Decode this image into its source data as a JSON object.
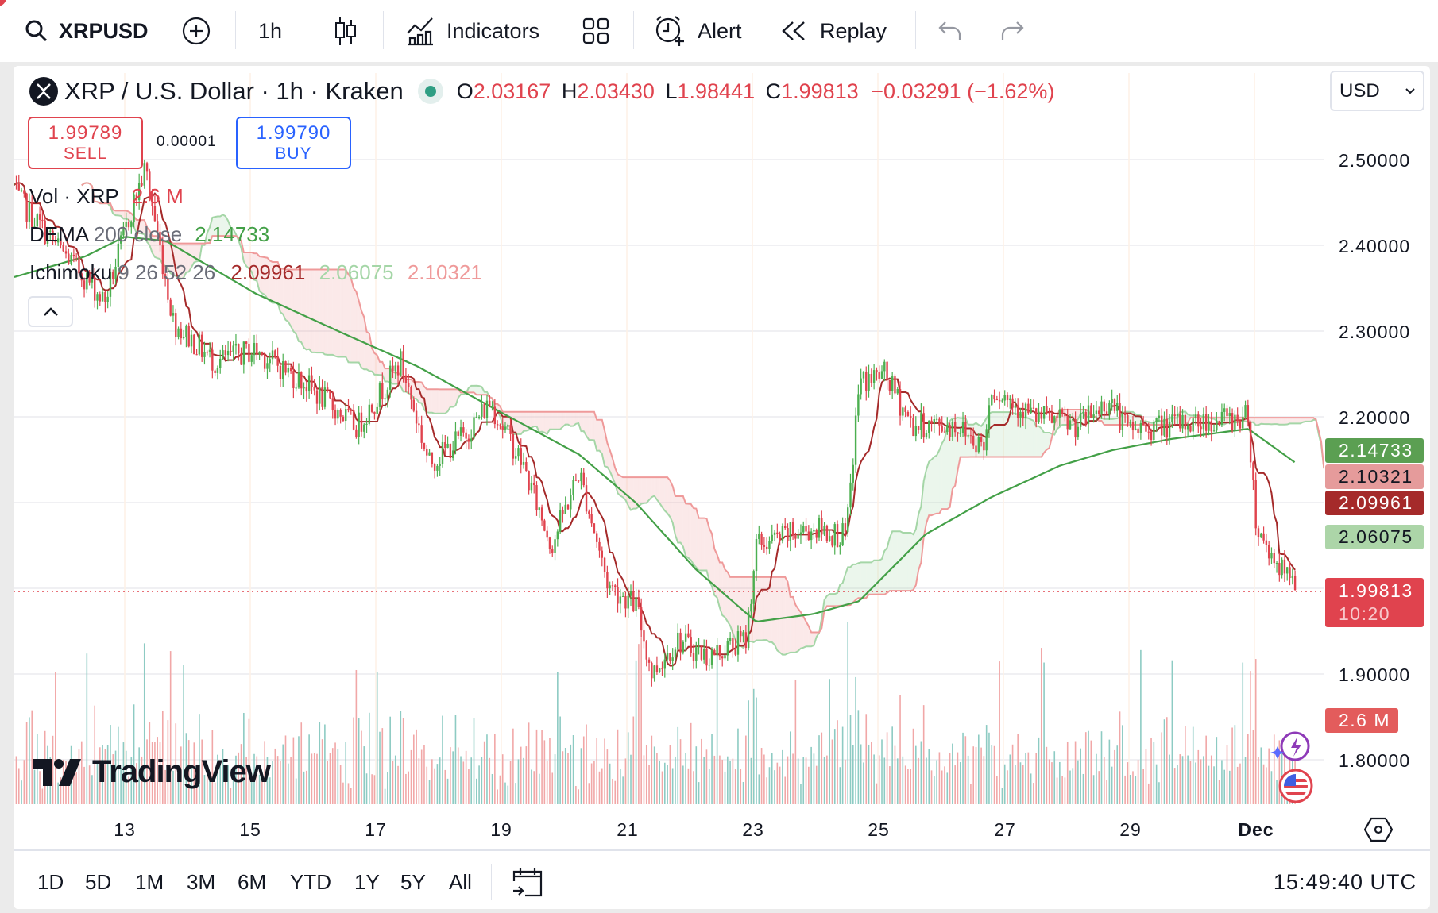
{
  "toolbar": {
    "symbol": "XRPUSD",
    "interval": "1h",
    "indicators": "Indicators",
    "alert": "Alert",
    "replay": "Replay"
  },
  "legend": {
    "title": "XRP / U.S. Dollar · 1h · Kraken",
    "o_label": "O",
    "o": "2.03167",
    "h_label": "H",
    "h": "2.03430",
    "l_label": "L",
    "l": "1.98441",
    "c_label": "C",
    "c": "1.99813",
    "change": "−0.03291 (−1.62%)"
  },
  "trade": {
    "sell_price": "1.99789",
    "sell_label": "SELL",
    "spread": "0.00001",
    "buy_price": "1.99790",
    "buy_label": "BUY"
  },
  "indicators": {
    "vol": {
      "name": "Vol · XRP",
      "value": "2.6 M"
    },
    "dema": {
      "name": "DEMA",
      "params": "200 close",
      "value": "2.14733"
    },
    "ichimoku": {
      "name": "Ichimoku",
      "params": "9 26 52 26",
      "conv": "2.09961",
      "spanA": "2.06075",
      "spanB": "2.10321"
    }
  },
  "currency": "USD",
  "price_axis": [
    "2.50000",
    "2.40000",
    "2.30000",
    "2.20000",
    "1.90000",
    "1.80000"
  ],
  "price_tags": {
    "dema": "2.14733",
    "spanB": "2.10321",
    "conv": "2.09961",
    "spanA": "2.06075",
    "last": "1.99813",
    "countdown": "10:20",
    "volume": "2.6 M"
  },
  "date_axis": [
    "13",
    "15",
    "17",
    "19",
    "21",
    "23",
    "25",
    "27",
    "29",
    "Dec"
  ],
  "ranges": [
    "1D",
    "5D",
    "1M",
    "3M",
    "6M",
    "YTD",
    "1Y",
    "5Y",
    "All"
  ],
  "clock": "15:49:40 UTC",
  "logo": "TradingView",
  "colors": {
    "up": "#4caf50",
    "down": "#e0434e",
    "kijun": "#a52a2a",
    "dema": "#43a047",
    "spanA": "#a5d6a7",
    "spanB": "#ef9a9a",
    "buy": "#2962ff"
  },
  "chart_data": {
    "type": "candlestick",
    "x_unit": "day of month (Nov; 31 = Dec 1)",
    "ylim": [
      1.75,
      2.55
    ],
    "price_path": [
      [
        11.23,
        2.47
      ],
      [
        11.27,
        2.457
      ],
      [
        11.85,
        2.405
      ],
      [
        12.4,
        2.36
      ],
      [
        12.68,
        2.334
      ],
      [
        13.1,
        2.44
      ],
      [
        13.33,
        2.49
      ],
      [
        13.78,
        2.31
      ],
      [
        14.43,
        2.264
      ],
      [
        15.08,
        2.278
      ],
      [
        15.85,
        2.24
      ],
      [
        16.7,
        2.188
      ],
      [
        17.4,
        2.264
      ],
      [
        17.85,
        2.145
      ],
      [
        18.43,
        2.18
      ],
      [
        18.82,
        2.217
      ],
      [
        19.34,
        2.145
      ],
      [
        19.8,
        2.05
      ],
      [
        20.24,
        2.136
      ],
      [
        20.7,
        2.004
      ],
      [
        21.15,
        1.98
      ],
      [
        21.4,
        1.9
      ],
      [
        21.8,
        1.94
      ],
      [
        22.3,
        1.92
      ],
      [
        22.56,
        1.93
      ],
      [
        22.9,
        1.94
      ],
      [
        23.06,
        2.05
      ],
      [
        23.97,
        2.07
      ],
      [
        24.5,
        2.06
      ],
      [
        24.7,
        2.24
      ],
      [
        25.1,
        2.25
      ],
      [
        25.55,
        2.19
      ],
      [
        26.25,
        2.19
      ],
      [
        26.7,
        2.165
      ],
      [
        26.8,
        2.235
      ],
      [
        27.5,
        2.2
      ],
      [
        28.2,
        2.19
      ],
      [
        28.7,
        2.22
      ],
      [
        28.96,
        2.185
      ],
      [
        29.66,
        2.19
      ],
      [
        30.9,
        2.2
      ],
      [
        31.03,
        2.07
      ],
      [
        31.27,
        2.04
      ],
      [
        31.65,
        1.998
      ]
    ],
    "dema_path": [
      [
        11.24,
        2.363
      ],
      [
        12.37,
        2.387
      ],
      [
        13.0,
        2.41
      ],
      [
        13.66,
        2.405
      ],
      [
        15.08,
        2.344
      ],
      [
        16.49,
        2.297
      ],
      [
        17.66,
        2.259
      ],
      [
        18.95,
        2.207
      ],
      [
        20.24,
        2.156
      ],
      [
        21.14,
        2.1
      ],
      [
        22.1,
        2.022
      ],
      [
        23.06,
        1.961
      ],
      [
        23.97,
        1.97
      ],
      [
        24.7,
        1.985
      ],
      [
        25.76,
        2.063
      ],
      [
        26.8,
        2.106
      ],
      [
        27.9,
        2.143
      ],
      [
        28.73,
        2.161
      ],
      [
        29.66,
        2.174
      ],
      [
        30.9,
        2.186
      ],
      [
        31.66,
        2.146
      ]
    ]
  }
}
